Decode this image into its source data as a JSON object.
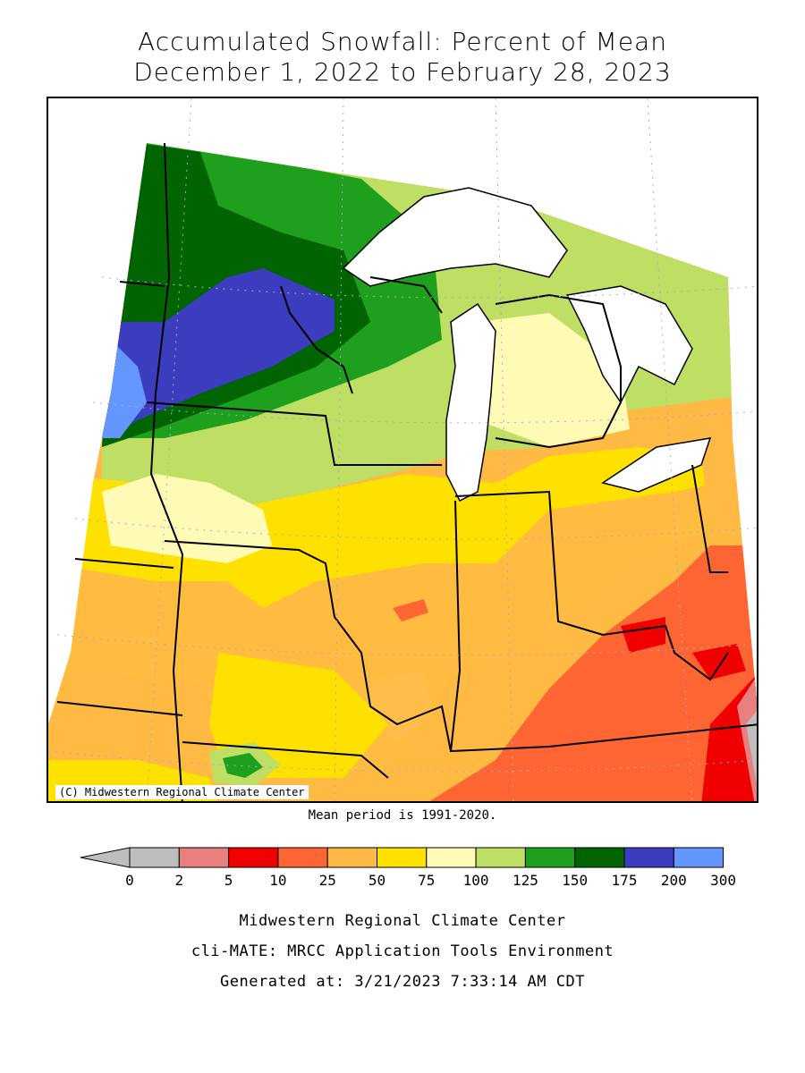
{
  "title": {
    "line1": "Accumulated Snowfall: Percent of Mean",
    "line2": "December 1, 2022 to February 28, 2023"
  },
  "map": {
    "copyright": "(C) Midwestern Regional Climate Center",
    "mean_period": "Mean period is 1991-2020."
  },
  "legend": {
    "ticks": [
      "0",
      "2",
      "5",
      "10",
      "25",
      "50",
      "75",
      "100",
      "125",
      "150",
      "175",
      "200",
      "300"
    ],
    "colors": [
      "#bebebe",
      "#e88080",
      "#f00000",
      "#ff6433",
      "#ffb945",
      "#ffe100",
      "#fffab4",
      "#bede64",
      "#1ea01e",
      "#006400",
      "#3c3cbe",
      "#6496ff"
    ],
    "arrow_color": "#bebebe"
  },
  "footer": {
    "line1": "Midwestern Regional Climate Center",
    "line2": "cli-MATE: MRCC Application Tools Environment",
    "line3": "Generated at: 3/21/2023 7:33:14 AM CDT"
  }
}
